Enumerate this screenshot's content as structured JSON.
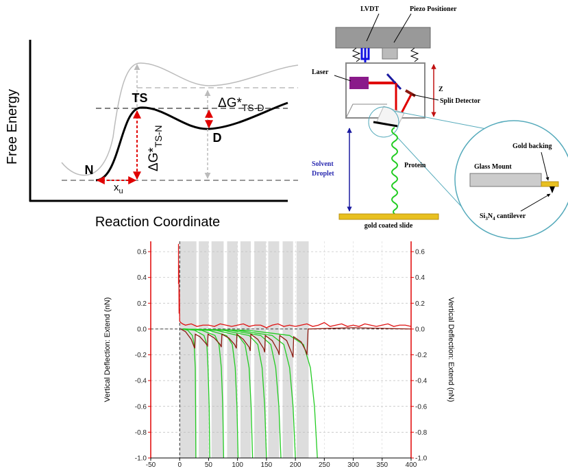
{
  "energy_diagram": {
    "y_axis_label": "Free Energy",
    "x_axis_label": "Reaction Coordinate",
    "states": {
      "n": "N",
      "ts": "TS",
      "d": "D"
    },
    "dg_ts_d": {
      "symbol": "ΔG*",
      "subscript": "TS-D"
    },
    "dg_ts_n": {
      "symbol": "ΔG*",
      "subscript": "TS-N"
    },
    "x_u": {
      "symbol": "x",
      "subscript": "u"
    }
  },
  "afm_schematic": {
    "labels": {
      "lvdt": "LVDT",
      "piezo": "Piezo Positioner",
      "laser": "Laser",
      "z": "Z",
      "detector": "Split Detector",
      "solvent": [
        "Solvent",
        "Droplet"
      ],
      "protein": "Protein",
      "slide": "gold coated slide",
      "gold_backing": "Gold backing",
      "glass_mount": "Glass Mount",
      "cantilever": [
        "Si",
        "3",
        "N",
        "4",
        " cantilever"
      ]
    }
  },
  "chart_data": {
    "type": "line",
    "y_label": "Vertical Deflection: Extend (nN)",
    "y2_label": "Vertical Deflection: Extend (nN)",
    "xlim": [
      -50,
      400
    ],
    "xticks": [
      -50,
      0,
      50,
      100,
      150,
      200,
      250,
      300,
      350,
      400
    ],
    "ylim": [
      -1.0,
      0.68
    ],
    "yticks": [
      {
        "value": -1.0,
        "label": "-1.0"
      },
      -0.8,
      -0.6,
      -0.4,
      -0.2,
      {
        "value": 0,
        "label": "0.0"
      },
      0.2,
      0.4,
      0.6
    ],
    "y2lim": [
      -1.0,
      0.68
    ],
    "y2ticks": [
      {
        "value": -1.0,
        "label": "-1.0"
      },
      -0.8,
      -0.6,
      -0.4,
      -0.2,
      {
        "value": 0,
        "label": "0.0"
      },
      0.2,
      0.4,
      0.6
    ],
    "grid": true,
    "axis_color": "#e00000",
    "shade_color": "#dddddd",
    "reference_lines": {
      "x": 0,
      "y": 0
    },
    "shaded_ranges": [
      [
        0,
        29
      ],
      [
        33,
        50
      ],
      [
        55,
        76
      ],
      [
        82,
        100
      ],
      [
        105,
        123
      ],
      [
        129,
        149
      ],
      [
        153,
        172
      ],
      [
        178,
        196
      ],
      [
        202,
        223
      ]
    ],
    "series": [
      {
        "color": "#e01010",
        "x": [
          -2,
          -2,
          -1.5,
          -1,
          -0.5,
          0,
          2,
          5,
          10,
          20,
          30,
          40,
          50,
          60,
          70,
          80,
          90,
          100,
          110,
          120,
          130,
          140,
          150,
          160,
          170,
          180,
          190,
          200,
          210,
          220,
          230,
          240,
          250,
          260,
          270,
          280,
          290,
          300,
          310,
          320,
          330,
          340,
          350,
          360,
          370,
          380,
          390,
          400
        ],
        "values": [
          0.66,
          0.35,
          0.5,
          0.12,
          0.3,
          0.06,
          0.05,
          0.04,
          0.03,
          0.04,
          0.02,
          0.03,
          0.03,
          0.02,
          0.04,
          0.03,
          0.02,
          0.03,
          0.04,
          0.02,
          0.03,
          0.03,
          0.01,
          0.03,
          0.04,
          0.02,
          0.03,
          0.02,
          0.03,
          0.04,
          0.02,
          0.03,
          0.05,
          0.02,
          0.03,
          0.04,
          0.02,
          0.03,
          0.02,
          0.04,
          0.03,
          0.02,
          0.03,
          0.04,
          0.02,
          0.03,
          0.03,
          0.02
        ]
      },
      {
        "color": "#22cc22",
        "x": [
          5,
          14,
          22,
          25,
          27,
          27.5,
          28
        ],
        "values": [
          0,
          -0.01,
          -0.05,
          -0.12,
          -0.3,
          -0.6,
          -1.0
        ]
      },
      {
        "color": "#22cc22",
        "x": [
          5,
          26,
          42,
          47,
          49,
          51,
          52
        ],
        "values": [
          0,
          -0.01,
          -0.05,
          -0.12,
          -0.3,
          -0.6,
          -1.0
        ]
      },
      {
        "color": "#22cc22",
        "x": [
          5,
          38,
          61,
          68,
          72,
          74.5,
          76
        ],
        "values": [
          0,
          -0.01,
          -0.05,
          -0.12,
          -0.3,
          -0.6,
          -1.0
        ]
      },
      {
        "color": "#22cc22",
        "x": [
          5,
          50,
          81,
          91,
          96,
          99,
          101
        ],
        "values": [
          0,
          -0.01,
          -0.05,
          -0.12,
          -0.3,
          -0.6,
          -1.0
        ]
      },
      {
        "color": "#22cc22",
        "x": [
          5,
          63,
          101,
          113,
          120,
          123.5,
          126
        ],
        "values": [
          0,
          -0.01,
          -0.05,
          -0.12,
          -0.3,
          -0.6,
          -1.0
        ]
      },
      {
        "color": "#22cc22",
        "x": [
          5,
          75,
          120,
          135,
          142.5,
          147,
          150
        ],
        "values": [
          0,
          -0.01,
          -0.05,
          -0.12,
          -0.3,
          -0.6,
          -1.0
        ]
      },
      {
        "color": "#22cc22",
        "x": [
          5,
          88,
          140,
          157.5,
          166,
          171.5,
          175
        ],
        "values": [
          0,
          -0.01,
          -0.05,
          -0.12,
          -0.3,
          -0.6,
          -1.0
        ]
      },
      {
        "color": "#22cc22",
        "x": [
          5,
          100,
          160,
          180,
          190,
          196,
          200
        ],
        "values": [
          0,
          -0.01,
          -0.05,
          -0.12,
          -0.3,
          -0.6,
          -1.0
        ]
      },
      {
        "color": "#22cc22",
        "x": [
          5,
          119,
          190,
          214,
          226,
          233,
          238
        ],
        "values": [
          0,
          -0.01,
          -0.05,
          -0.12,
          -0.3,
          -0.6,
          -1.0
        ]
      },
      {
        "color": "#8b1a10",
        "x": [
          2,
          10,
          20,
          26,
          27,
          35,
          45,
          48,
          49,
          60,
          70,
          72,
          73,
          85,
          95,
          98,
          99,
          110,
          120,
          122,
          123,
          135,
          145,
          147,
          148,
          160,
          170,
          172,
          173,
          185,
          194,
          196,
          197,
          210,
          218,
          220,
          222,
          300,
          400
        ],
        "values": [
          0,
          -0.02,
          -0.08,
          -0.15,
          -0.04,
          -0.06,
          -0.11,
          -0.13,
          -0.04,
          -0.07,
          -0.12,
          -0.14,
          -0.04,
          -0.07,
          -0.12,
          -0.15,
          -0.04,
          -0.08,
          -0.14,
          -0.17,
          -0.04,
          -0.08,
          -0.15,
          -0.18,
          -0.05,
          -0.09,
          -0.17,
          -0.2,
          -0.05,
          -0.09,
          -0.19,
          -0.22,
          -0.06,
          -0.1,
          -0.17,
          -0.2,
          0.0,
          0.01,
          0.0
        ]
      }
    ]
  }
}
